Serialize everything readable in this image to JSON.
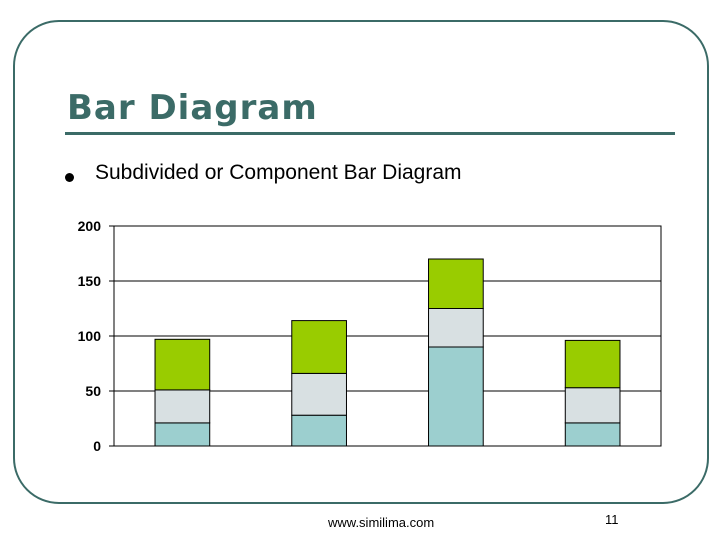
{
  "slide": {
    "title": "Bar Diagram",
    "bullet": "Subdivided or Component Bar Diagram",
    "footer_url": "www.similima.com",
    "page_number": "11"
  },
  "colors": {
    "frame": "#3b6b67",
    "title": "#3b6b67",
    "segment_bottom": "#9ccfcf",
    "segment_middle": "#d8e0e2",
    "segment_top": "#99cc00"
  },
  "chart_data": {
    "type": "bar",
    "stacked": true,
    "categories": [
      "",
      "",
      "",
      ""
    ],
    "series": [
      {
        "values": [
          21,
          28,
          90,
          21
        ]
      },
      {
        "values": [
          30,
          38,
          35,
          32
        ]
      },
      {
        "values": [
          46,
          48,
          45,
          43
        ]
      }
    ],
    "ylim": [
      0,
      200
    ],
    "yticks": [
      0,
      50,
      100,
      150,
      200
    ],
    "grid": true,
    "legend": false
  }
}
